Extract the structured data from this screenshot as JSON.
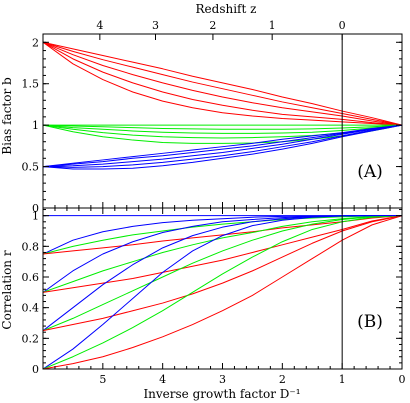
{
  "chart_data": [
    {
      "type": "line",
      "panel_label": "(A)",
      "ylabel": "Bias factor b",
      "top_axis_label": "Redshift z",
      "top_ticks": [
        "4",
        "3",
        "2",
        "1",
        "0"
      ],
      "top_tick_positions_Dinv": [
        5.05,
        4.12,
        3.16,
        2.17,
        1.0
      ],
      "xlim": [
        0,
        6
      ],
      "x_reversed": true,
      "ylim": [
        0,
        2.1
      ],
      "yticks": [
        "0",
        "0.5",
        "1",
        "1.5",
        "2"
      ],
      "ytick_values": [
        0,
        0.5,
        1,
        1.5,
        2
      ],
      "vertical_line_at": 1,
      "x": [
        6.0,
        5.5,
        5.0,
        4.5,
        4.0,
        3.5,
        3.0,
        2.5,
        2.0,
        1.5,
        1.0,
        0.5,
        0.0
      ],
      "series": [
        {
          "color": "#ff0000",
          "values": [
            2.0,
            1.92,
            1.84,
            1.76,
            1.68,
            1.59,
            1.51,
            1.43,
            1.34,
            1.26,
            1.17,
            1.09,
            1.0
          ]
        },
        {
          "color": "#ff0000",
          "values": [
            2.0,
            1.89,
            1.79,
            1.7,
            1.61,
            1.52,
            1.44,
            1.36,
            1.28,
            1.21,
            1.14,
            1.07,
            1.0
          ]
        },
        {
          "color": "#ff0000",
          "values": [
            2.0,
            1.85,
            1.72,
            1.61,
            1.51,
            1.42,
            1.34,
            1.27,
            1.21,
            1.16,
            1.11,
            1.05,
            1.0
          ]
        },
        {
          "color": "#ff0000",
          "values": [
            2.0,
            1.8,
            1.64,
            1.51,
            1.4,
            1.31,
            1.24,
            1.18,
            1.13,
            1.1,
            1.07,
            1.03,
            1.0
          ]
        },
        {
          "color": "#ff0000",
          "values": [
            2.0,
            1.74,
            1.55,
            1.4,
            1.29,
            1.21,
            1.15,
            1.11,
            1.08,
            1.06,
            1.04,
            1.02,
            1.0
          ]
        },
        {
          "color": "#00ee00",
          "values": [
            1.0,
            1.0,
            1.0,
            1.0,
            1.0,
            1.0,
            1.0,
            1.0,
            1.0,
            1.0,
            1.0,
            1.0,
            1.0
          ]
        },
        {
          "color": "#00ee00",
          "values": [
            1.0,
            0.99,
            0.98,
            0.97,
            0.96,
            0.955,
            0.95,
            0.95,
            0.95,
            0.955,
            0.965,
            0.98,
            1.0
          ]
        },
        {
          "color": "#00ee00",
          "values": [
            1.0,
            0.97,
            0.95,
            0.93,
            0.915,
            0.905,
            0.9,
            0.9,
            0.905,
            0.915,
            0.935,
            0.965,
            1.0
          ]
        },
        {
          "color": "#00ee00",
          "values": [
            1.0,
            0.95,
            0.91,
            0.88,
            0.86,
            0.85,
            0.845,
            0.85,
            0.86,
            0.875,
            0.905,
            0.95,
            1.0
          ]
        },
        {
          "color": "#00ee00",
          "values": [
            1.0,
            0.92,
            0.86,
            0.82,
            0.79,
            0.78,
            0.78,
            0.785,
            0.8,
            0.83,
            0.87,
            0.93,
            1.0
          ]
        },
        {
          "color": "#0000ff",
          "values": [
            0.5,
            0.54,
            0.58,
            0.62,
            0.66,
            0.7,
            0.74,
            0.78,
            0.83,
            0.87,
            0.91,
            0.96,
            1.0
          ]
        },
        {
          "color": "#0000ff",
          "values": [
            0.5,
            0.53,
            0.56,
            0.6,
            0.63,
            0.67,
            0.71,
            0.75,
            0.8,
            0.85,
            0.9,
            0.95,
            1.0
          ]
        },
        {
          "color": "#0000ff",
          "values": [
            0.5,
            0.51,
            0.53,
            0.56,
            0.59,
            0.63,
            0.67,
            0.72,
            0.77,
            0.83,
            0.89,
            0.95,
            1.0
          ]
        },
        {
          "color": "#0000ff",
          "values": [
            0.5,
            0.49,
            0.5,
            0.52,
            0.55,
            0.59,
            0.63,
            0.68,
            0.74,
            0.8,
            0.87,
            0.94,
            1.0
          ]
        },
        {
          "color": "#0000ff",
          "values": [
            0.5,
            0.47,
            0.47,
            0.48,
            0.51,
            0.55,
            0.6,
            0.65,
            0.71,
            0.78,
            0.86,
            0.93,
            1.0
          ]
        }
      ]
    },
    {
      "type": "line",
      "panel_label": "(B)",
      "ylabel": "Correlation r",
      "xlabel": "Inverse growth factor D⁻¹",
      "xticks": [
        "5",
        "4",
        "3",
        "2",
        "1",
        "0"
      ],
      "xtick_values": [
        5,
        4,
        3,
        2,
        1,
        0
      ],
      "xlim": [
        0,
        6
      ],
      "x_reversed": true,
      "ylim": [
        0,
        1.05
      ],
      "yticks": [
        "0",
        "0.2",
        "0.4",
        "0.6",
        "0.8",
        "1"
      ],
      "ytick_values": [
        0,
        0.2,
        0.4,
        0.6,
        0.8,
        1
      ],
      "vertical_line_at": 1,
      "horizontal_line_at": 1,
      "x": [
        6.0,
        5.5,
        5.0,
        4.5,
        4.0,
        3.5,
        3.0,
        2.5,
        2.0,
        1.5,
        1.0,
        0.5,
        0.0
      ],
      "series": [
        {
          "color": "#0000ff",
          "values": [
            0.75,
            0.84,
            0.895,
            0.93,
            0.955,
            0.97,
            0.98,
            0.99,
            0.995,
            0.998,
            1.0,
            1.0,
            1.0
          ]
        },
        {
          "color": "#00ee00",
          "values": [
            0.75,
            0.8,
            0.84,
            0.875,
            0.9,
            0.925,
            0.945,
            0.96,
            0.975,
            0.985,
            0.993,
            0.998,
            1.0
          ]
        },
        {
          "color": "#ff0000",
          "values": [
            0.75,
            0.77,
            0.79,
            0.81,
            0.835,
            0.855,
            0.875,
            0.895,
            0.92,
            0.94,
            0.96,
            0.985,
            1.0
          ]
        },
        {
          "color": "#0000ff",
          "values": [
            0.5,
            0.64,
            0.75,
            0.83,
            0.89,
            0.93,
            0.96,
            0.975,
            0.987,
            0.995,
            0.999,
            1.0,
            1.0
          ]
        },
        {
          "color": "#00ee00",
          "values": [
            0.5,
            0.57,
            0.64,
            0.7,
            0.76,
            0.81,
            0.855,
            0.89,
            0.93,
            0.96,
            0.98,
            0.995,
            1.0
          ]
        },
        {
          "color": "#ff0000",
          "values": [
            0.5,
            0.53,
            0.56,
            0.59,
            0.63,
            0.67,
            0.71,
            0.76,
            0.81,
            0.86,
            0.91,
            0.965,
            1.0
          ]
        },
        {
          "color": "#0000ff",
          "values": [
            0.25,
            0.4,
            0.55,
            0.68,
            0.79,
            0.87,
            0.925,
            0.96,
            0.98,
            0.993,
            0.999,
            1.0,
            1.0
          ]
        },
        {
          "color": "#00ee00",
          "values": [
            0.25,
            0.33,
            0.42,
            0.51,
            0.6,
            0.69,
            0.77,
            0.84,
            0.9,
            0.945,
            0.975,
            0.993,
            1.0
          ]
        },
        {
          "color": "#ff0000",
          "values": [
            0.25,
            0.29,
            0.33,
            0.38,
            0.43,
            0.49,
            0.56,
            0.64,
            0.73,
            0.82,
            0.9,
            0.96,
            1.0
          ]
        },
        {
          "color": "#0000ff",
          "values": [
            0.0,
            0.13,
            0.29,
            0.46,
            0.63,
            0.77,
            0.87,
            0.935,
            0.97,
            0.99,
            0.998,
            1.0,
            1.0
          ]
        },
        {
          "color": "#00ee00",
          "values": [
            0.0,
            0.08,
            0.17,
            0.27,
            0.38,
            0.5,
            0.62,
            0.73,
            0.83,
            0.91,
            0.96,
            0.99,
            1.0
          ]
        },
        {
          "color": "#ff0000",
          "values": [
            0.0,
            0.035,
            0.08,
            0.14,
            0.21,
            0.29,
            0.38,
            0.48,
            0.6,
            0.72,
            0.84,
            0.94,
            1.0
          ]
        }
      ]
    }
  ]
}
